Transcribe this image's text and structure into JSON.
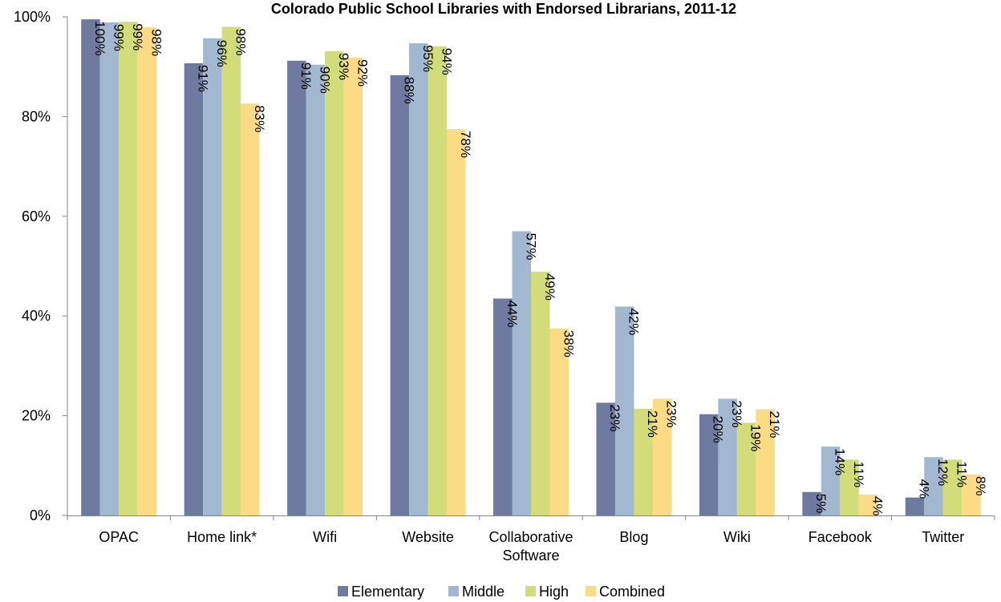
{
  "chart_data": {
    "type": "bar",
    "title": "Colorado Public School Libraries with Endorsed Librarians, 2011-12",
    "xlabel": "",
    "ylabel": "",
    "ylim": [
      0,
      100
    ],
    "y_ticks": [
      0,
      20,
      40,
      60,
      80,
      100
    ],
    "y_tick_format": "%",
    "grid": false,
    "legend_position": "bottom",
    "categories": [
      [
        "OPAC"
      ],
      [
        "Home link*"
      ],
      [
        "Wifi"
      ],
      [
        "Website"
      ],
      [
        "Collaborative",
        "Software"
      ],
      [
        "Blog"
      ],
      [
        "Wiki"
      ],
      [
        "Facebook"
      ],
      [
        "Twitter"
      ]
    ],
    "series": [
      {
        "name": "Elementary",
        "color": "#6f7aa1",
        "values": [
          99.5,
          90.7,
          91.2,
          88.3,
          43.5,
          22.6,
          20.3,
          4.7,
          3.6
        ],
        "labels": [
          "100%",
          "91%",
          "91%",
          "88%",
          "44%",
          "23%",
          "20%",
          "5%",
          "4%"
        ]
      },
      {
        "name": "Middle",
        "color": "#a2b7d0",
        "values": [
          98.9,
          95.7,
          90.4,
          94.7,
          57.0,
          41.9,
          23.4,
          13.8,
          11.7
        ],
        "labels": [
          "99%",
          "96%",
          "90%",
          "95%",
          "57%",
          "42%",
          "23%",
          "14%",
          "12%"
        ]
      },
      {
        "name": "High",
        "color": "#d2dd79",
        "values": [
          99.0,
          98.0,
          93.1,
          94.1,
          48.9,
          21.4,
          18.6,
          11.2,
          11.2
        ],
        "labels": [
          "99%",
          "98%",
          "93%",
          "94%",
          "49%",
          "21%",
          "19%",
          "11%",
          "11%"
        ]
      },
      {
        "name": "Combined",
        "color": "#fbdb83",
        "values": [
          97.9,
          82.6,
          91.8,
          77.5,
          37.5,
          23.4,
          21.3,
          4.2,
          8.2
        ],
        "labels": [
          "98%",
          "83%",
          "92%",
          "78%",
          "38%",
          "23%",
          "21%",
          "4%",
          "8%"
        ]
      }
    ]
  }
}
